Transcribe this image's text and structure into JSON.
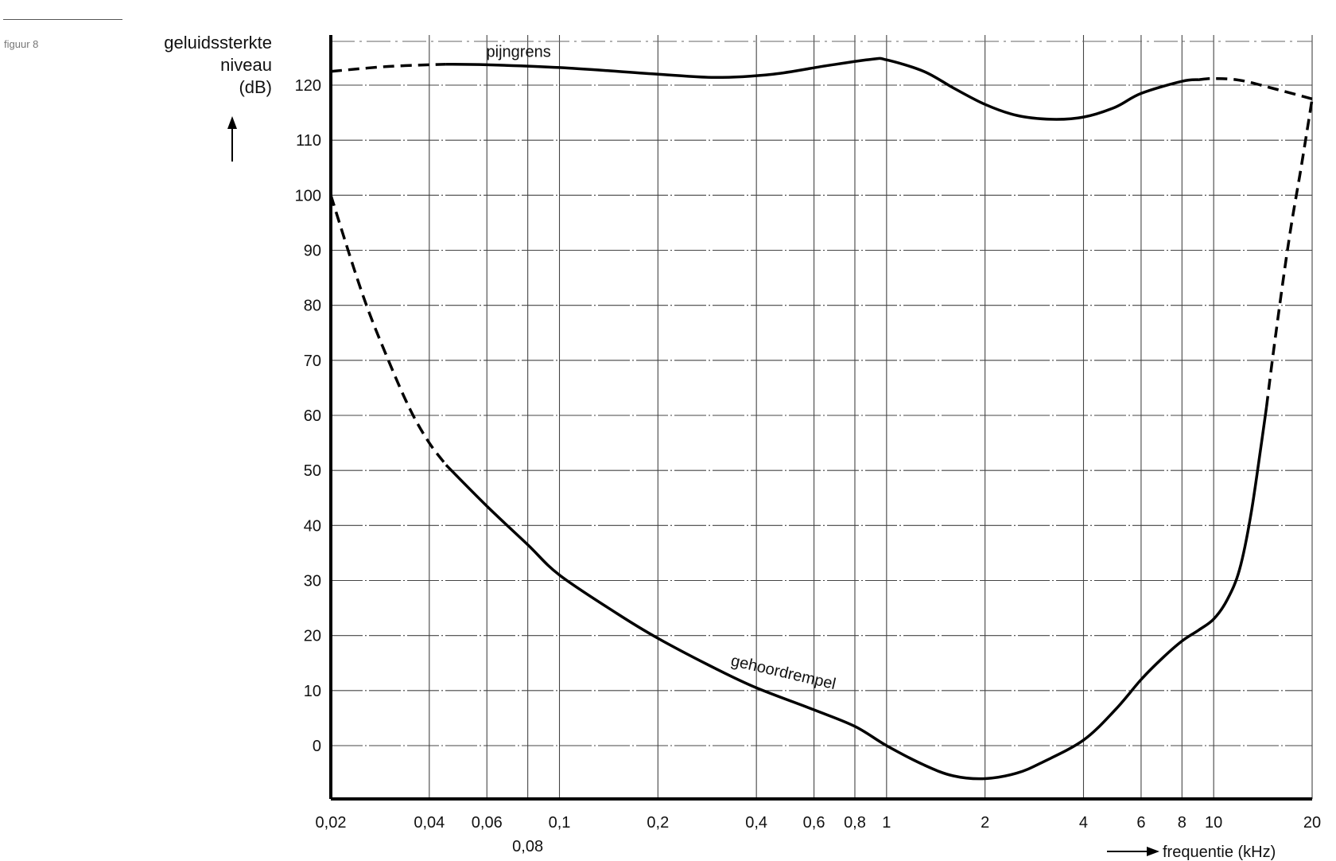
{
  "figure_label": "figuur 8",
  "chart_data": {
    "type": "line",
    "title": "",
    "ylabel": [
      "geluidssterkte",
      "niveau",
      "(dB)"
    ],
    "xlabel": "frequentie (kHz)",
    "xscale": "log",
    "xlim": [
      0.02,
      20
    ],
    "ylim": [
      -10,
      130
    ],
    "grid": true,
    "yticks": [
      0,
      10,
      20,
      30,
      40,
      50,
      60,
      70,
      80,
      90,
      100,
      110,
      120
    ],
    "xticks": [
      {
        "value": 0.02,
        "label": "0,02",
        "row": 1
      },
      {
        "value": 0.04,
        "label": "0,04",
        "row": 1
      },
      {
        "value": 0.06,
        "label": "0,06",
        "row": 1
      },
      {
        "value": 0.08,
        "label": "0,08",
        "row": 2
      },
      {
        "value": 0.1,
        "label": "0,1",
        "row": 1
      },
      {
        "value": 0.2,
        "label": "0,2",
        "row": 1
      },
      {
        "value": 0.4,
        "label": "0,4",
        "row": 1
      },
      {
        "value": 0.6,
        "label": "0,6",
        "row": 1
      },
      {
        "value": 0.8,
        "label": "0,8",
        "row": 1
      },
      {
        "value": 1,
        "label": "1",
        "row": 1
      },
      {
        "value": 2,
        "label": "2",
        "row": 1
      },
      {
        "value": 4,
        "label": "4",
        "row": 1
      },
      {
        "value": 6,
        "label": "6",
        "row": 1
      },
      {
        "value": 8,
        "label": "8",
        "row": 1
      },
      {
        "value": 10,
        "label": "10",
        "row": 1
      },
      {
        "value": 20,
        "label": "20",
        "row": 1
      }
    ],
    "series": [
      {
        "name": "pijngrens",
        "segments": [
          {
            "style": "dashed",
            "points": [
              [
                0.02,
                122.5
              ],
              [
                0.03,
                123.4
              ],
              [
                0.045,
                123.8
              ]
            ]
          },
          {
            "style": "solid",
            "points": [
              [
                0.045,
                123.8
              ],
              [
                0.06,
                123.7
              ],
              [
                0.1,
                123.2
              ],
              [
                0.2,
                122.0
              ],
              [
                0.3,
                121.4
              ],
              [
                0.45,
                122.0
              ],
              [
                0.65,
                123.5
              ],
              [
                0.9,
                124.7
              ],
              [
                1.0,
                124.6
              ],
              [
                1.3,
                122.5
              ],
              [
                1.6,
                119.5
              ],
              [
                2.0,
                116.5
              ],
              [
                2.5,
                114.5
              ],
              [
                3.2,
                113.8
              ],
              [
                4.0,
                114.2
              ],
              [
                5.0,
                116.0
              ],
              [
                6.0,
                118.5
              ],
              [
                8.0,
                120.7
              ],
              [
                9.0,
                121.0
              ]
            ]
          },
          {
            "style": "dashed",
            "points": [
              [
                9.0,
                121.0
              ],
              [
                10.0,
                121.2
              ],
              [
                12.0,
                120.9
              ],
              [
                15.0,
                119.5
              ],
              [
                20.0,
                117.5
              ]
            ]
          }
        ]
      },
      {
        "name": "gehoordrempel",
        "segments": [
          {
            "style": "dashed",
            "points": [
              [
                0.02,
                100.0
              ],
              [
                0.025,
                82.0
              ],
              [
                0.03,
                70.0
              ],
              [
                0.035,
                61.0
              ],
              [
                0.04,
                55.0
              ],
              [
                0.045,
                51.0
              ]
            ]
          },
          {
            "style": "solid",
            "points": [
              [
                0.045,
                51.0
              ],
              [
                0.06,
                43.5
              ],
              [
                0.08,
                36.5
              ],
              [
                0.1,
                31.0
              ],
              [
                0.15,
                24.0
              ],
              [
                0.2,
                19.5
              ],
              [
                0.3,
                14.0
              ],
              [
                0.4,
                10.5
              ],
              [
                0.6,
                6.5
              ],
              [
                0.8,
                3.5
              ],
              [
                1.0,
                0.0
              ],
              [
                1.3,
                -3.5
              ],
              [
                1.6,
                -5.5
              ],
              [
                2.0,
                -6.0
              ],
              [
                2.5,
                -5.0
              ],
              [
                3.0,
                -3.0
              ],
              [
                4.0,
                1.0
              ],
              [
                5.0,
                6.5
              ],
              [
                6.0,
                12.0
              ],
              [
                7.0,
                16.0
              ],
              [
                8.0,
                19.0
              ],
              [
                9.0,
                21.0
              ],
              [
                10.0,
                23.0
              ],
              [
                11.0,
                26.5
              ],
              [
                12.0,
                32.0
              ],
              [
                13.0,
                42.0
              ],
              [
                14.0,
                55.0
              ],
              [
                14.5,
                61.5
              ]
            ]
          },
          {
            "style": "dashed",
            "points": [
              [
                14.5,
                61.5
              ],
              [
                15.5,
                75.0
              ],
              [
                17.0,
                92.0
              ],
              [
                18.5,
                105.0
              ],
              [
                20.0,
                117.5
              ]
            ]
          }
        ]
      }
    ],
    "labels": [
      {
        "series": "pijngrens",
        "text": "pijngrens"
      },
      {
        "series": "gehoordrempel",
        "text": "gehoordrempel"
      }
    ]
  }
}
